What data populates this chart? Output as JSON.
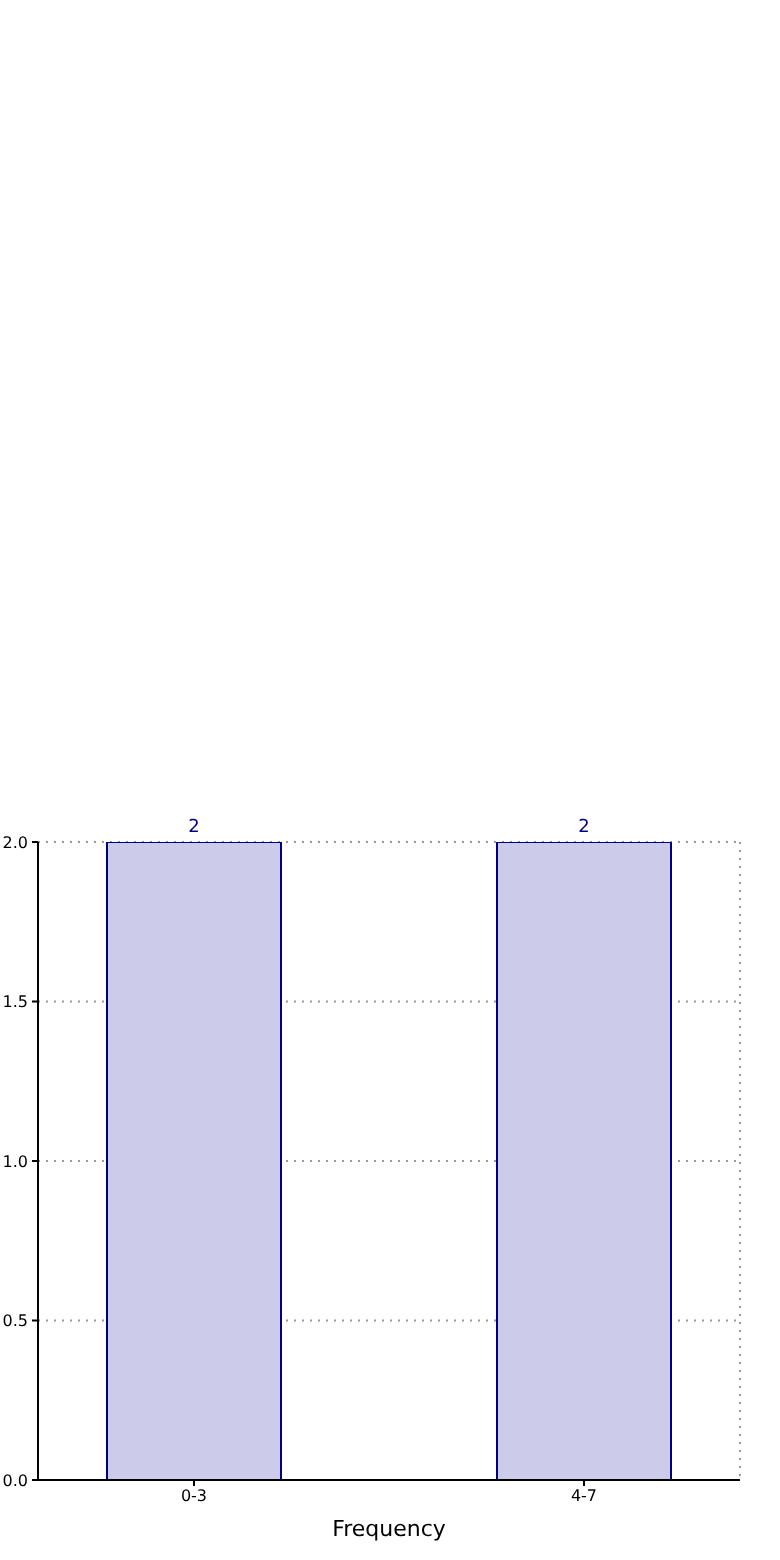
{
  "chart_data": {
    "type": "bar",
    "xlabel": "Frequency",
    "categories": [
      "0-3",
      "4-7"
    ],
    "values": [
      2,
      2
    ],
    "color": "#ccccea",
    "data_labels": true,
    "ylim": [
      0,
      2
    ],
    "yticks": [
      {
        "value": 0,
        "label": "0.0"
      },
      {
        "value": 0.5,
        "label": "0.5"
      },
      {
        "value": 1,
        "label": "1.0"
      },
      {
        "value": 1.5,
        "label": "1.5"
      },
      {
        "value": 2,
        "label": "2.0"
      }
    ],
    "grid": true
  }
}
